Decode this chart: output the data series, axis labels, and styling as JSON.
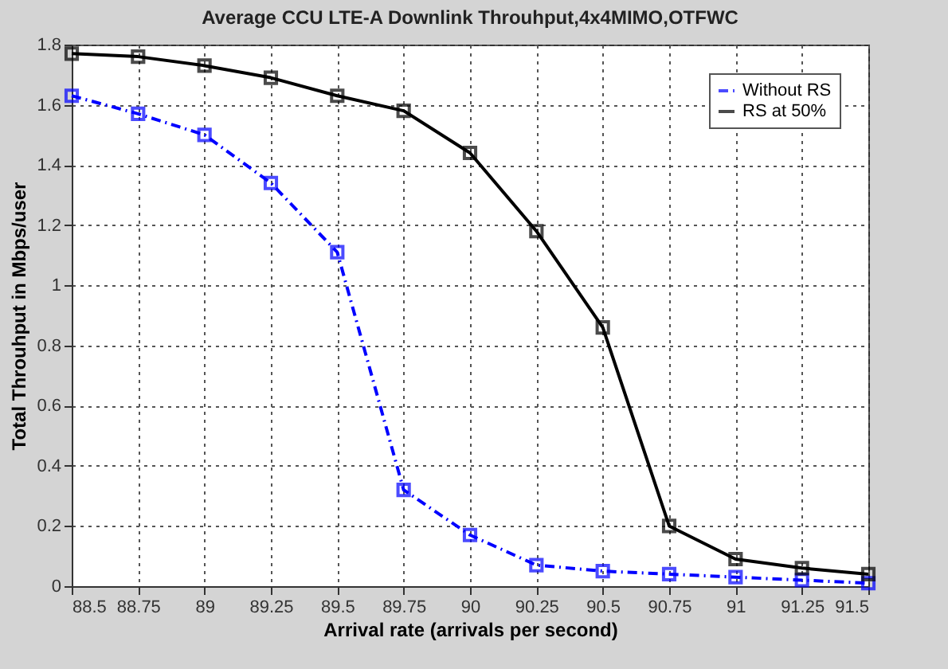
{
  "chart_data": {
    "type": "line",
    "title": "Average CCU LTE-A Downlink Throuhput,4x4MIMO,OTFWC",
    "xlabel": "Arrival rate (arrivals per second)",
    "ylabel": "Total Throuhput in Mbps/user",
    "x": [
      88.5,
      88.75,
      89,
      89.25,
      89.5,
      89.75,
      90,
      90.25,
      90.5,
      90.75,
      91,
      91.25,
      91.5
    ],
    "series": [
      {
        "name": "Without RS",
        "color": "#0000ff",
        "line_style": "dashed",
        "values": [
          1.63,
          1.57,
          1.5,
          1.34,
          1.11,
          0.32,
          0.17,
          0.07,
          0.05,
          0.04,
          0.03,
          0.02,
          0.01
        ]
      },
      {
        "name": "RS at 50%",
        "color": "#000000",
        "line_style": "solid",
        "values": [
          1.77,
          1.76,
          1.73,
          1.69,
          1.63,
          1.58,
          1.44,
          1.18,
          0.86,
          0.2,
          0.09,
          0.06,
          0.04
        ]
      }
    ],
    "xlim": [
      88.5,
      91.5
    ],
    "xticks": [
      88.5,
      88.75,
      89,
      89.25,
      89.5,
      89.75,
      90,
      90.25,
      90.5,
      90.75,
      91,
      91.25,
      91.5
    ],
    "ylim": [
      0,
      1.8
    ],
    "yticks": [
      0,
      0.2,
      0.4,
      0.6,
      0.8,
      1,
      1.2,
      1.4,
      1.6,
      1.8
    ],
    "grid": true,
    "legend": "top right",
    "marker": "square"
  }
}
